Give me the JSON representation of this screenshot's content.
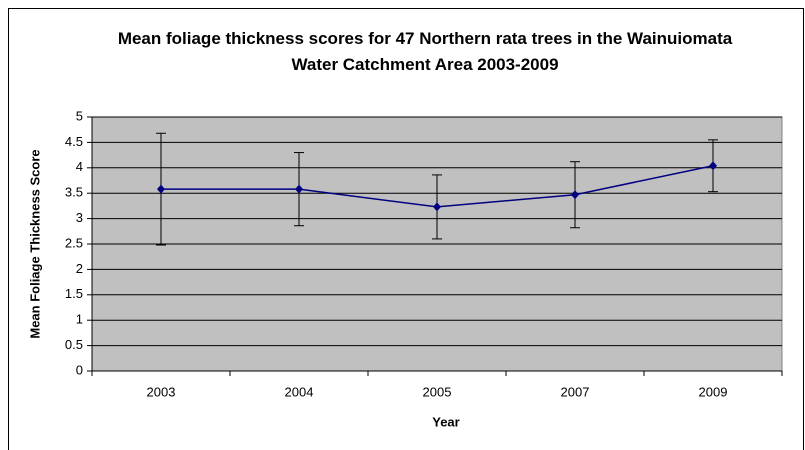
{
  "chart_data": {
    "type": "line",
    "title": "Mean foliage thickness scores for 47 Northern rata trees in the Wainuiomata Water Catchment Area 2003-2009",
    "x_label": "Year",
    "y_label": "Mean Foliage Thickness Score",
    "categories": [
      "2003",
      "2004",
      "2005",
      "2007",
      "2009"
    ],
    "series": [
      {
        "name": "Mean foliage thickness",
        "color": "#000080",
        "values": [
          3.58,
          3.58,
          3.23,
          3.47,
          4.04
        ],
        "errors": [
          1.1,
          0.72,
          0.63,
          0.65,
          0.51
        ]
      }
    ],
    "ylim": [
      0,
      5
    ],
    "yticks": [
      0,
      0.5,
      1,
      1.5,
      2,
      2.5,
      3,
      3.5,
      4,
      4.5,
      5
    ],
    "grid": true,
    "plot_background": "#c0c0c0"
  }
}
